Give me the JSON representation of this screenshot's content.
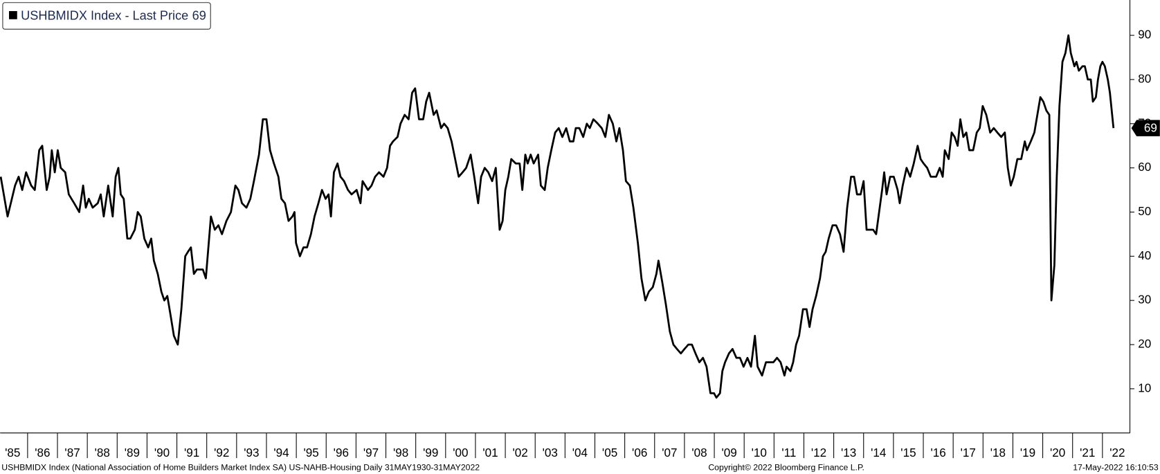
{
  "chart_data": {
    "type": "line",
    "series": [
      {
        "name": "USHBMIDX Index - Last Price",
        "color": "#000000",
        "x": [
          1985.1,
          1985.33,
          1985.58,
          1985.7,
          1985.82,
          1985.95,
          1986.12,
          1986.24,
          1986.39,
          1986.49,
          1986.64,
          1986.74,
          1986.81,
          1986.91,
          1987.01,
          1987.11,
          1987.26,
          1987.38,
          1987.56,
          1987.73,
          1987.86,
          1987.95,
          1988.05,
          1988.18,
          1988.35,
          1988.45,
          1988.55,
          1988.7,
          1988.85,
          1988.95,
          1989.04,
          1989.12,
          1989.22,
          1989.34,
          1989.44,
          1989.59,
          1989.69,
          1989.79,
          1989.91,
          1990.04,
          1990.14,
          1990.23,
          1990.36,
          1990.48,
          1990.58,
          1990.68,
          1990.78,
          1990.9,
          1991.03,
          1991.15,
          1991.28,
          1991.37,
          1991.47,
          1991.57,
          1991.67,
          1991.87,
          1991.97,
          1992.14,
          1992.27,
          1992.39,
          1992.51,
          1992.66,
          1992.81,
          1992.96,
          1993.06,
          1993.18,
          1993.33,
          1993.46,
          1993.58,
          1993.75,
          1993.88,
          1994.0,
          1994.12,
          1994.25,
          1994.4,
          1994.5,
          1994.62,
          1994.74,
          1994.87,
          1994.94,
          1994.99,
          1995.12,
          1995.24,
          1995.36,
          1995.49,
          1995.61,
          1995.74,
          1995.86,
          1995.98,
          1996.08,
          1996.16,
          1996.26,
          1996.38,
          1996.48,
          1996.6,
          1996.73,
          1996.85,
          1997.02,
          1997.15,
          1997.22,
          1997.4,
          1997.52,
          1997.64,
          1997.77,
          1997.92,
          1998.04,
          1998.14,
          1998.24,
          1998.39,
          1998.49,
          1998.63,
          1998.76,
          1998.88,
          1998.98,
          1999.11,
          1999.25,
          1999.35,
          1999.45,
          1999.6,
          1999.7,
          1999.85,
          1999.95,
          2000.07,
          2000.2,
          2000.29,
          2000.44,
          2000.57,
          2000.69,
          2000.84,
          2000.96,
          2001.09,
          2001.19,
          2001.31,
          2001.43,
          2001.56,
          2001.68,
          2001.81,
          2001.91,
          2002.0,
          2002.1,
          2002.2,
          2002.35,
          2002.48,
          2002.57,
          2002.67,
          2002.75,
          2002.85,
          2002.95,
          2003.1,
          2003.19,
          2003.32,
          2003.42,
          2003.54,
          2003.67,
          2003.79,
          2003.91,
          2004.04,
          2004.16,
          2004.28,
          2004.36,
          2004.48,
          2004.61,
          2004.73,
          2004.83,
          2004.95,
          2005.1,
          2005.23,
          2005.35,
          2005.47,
          2005.6,
          2005.72,
          2005.82,
          2005.94,
          2006.04,
          2006.17,
          2006.29,
          2006.44,
          2006.56,
          2006.69,
          2006.81,
          2006.94,
          2007.06,
          2007.13,
          2007.26,
          2007.38,
          2007.51,
          2007.63,
          2007.75,
          2007.88,
          2008.0,
          2008.13,
          2008.25,
          2008.37,
          2008.5,
          2008.62,
          2008.74,
          2008.87,
          2008.99,
          2009.07,
          2009.19,
          2009.27,
          2009.36,
          2009.49,
          2009.61,
          2009.74,
          2009.86,
          2009.98,
          2010.11,
          2010.23,
          2010.36,
          2010.45,
          2010.6,
          2010.73,
          2010.85,
          2010.98,
          2011.1,
          2011.22,
          2011.35,
          2011.42,
          2011.55,
          2011.64,
          2011.74,
          2011.84,
          2011.97,
          2012.09,
          2012.19,
          2012.29,
          2012.41,
          2012.54,
          2012.64,
          2012.73,
          2012.83,
          2012.96,
          2013.08,
          2013.21,
          2013.33,
          2013.45,
          2013.58,
          2013.68,
          2013.78,
          2013.9,
          2014.0,
          2014.1,
          2014.2,
          2014.32,
          2014.42,
          2014.52,
          2014.62,
          2014.69,
          2014.77,
          2014.89,
          2015.01,
          2015.14,
          2015.21,
          2015.31,
          2015.44,
          2015.56,
          2015.68,
          2015.81,
          2015.91,
          2016.01,
          2016.13,
          2016.25,
          2016.43,
          2016.55,
          2016.65,
          2016.72,
          2016.85,
          2016.95,
          2017.05,
          2017.15,
          2017.24,
          2017.34,
          2017.44,
          2017.54,
          2017.67,
          2017.79,
          2017.89,
          2017.99,
          2018.11,
          2018.24,
          2018.36,
          2018.48,
          2018.61,
          2018.73,
          2018.83,
          2018.93,
          2019.03,
          2019.15,
          2019.28,
          2019.4,
          2019.47,
          2019.6,
          2019.72,
          2019.82,
          2019.92,
          2020.02,
          2020.12,
          2020.22,
          2020.29,
          2020.39,
          2020.47,
          2020.56,
          2020.66,
          2020.76,
          2020.86,
          2020.94,
          2021.06,
          2021.13,
          2021.21,
          2021.33,
          2021.41,
          2021.51,
          2021.61,
          2021.68,
          2021.78,
          2021.85,
          2021.93,
          2022.0,
          2022.08,
          2022.18,
          2022.25,
          2022.37
        ],
        "values": [
          58,
          49,
          56,
          58,
          55,
          59,
          56,
          55,
          64,
          65,
          55,
          58,
          64,
          59,
          64,
          60,
          59,
          54,
          52,
          50,
          56,
          51,
          53,
          51,
          52,
          54,
          49,
          56,
          49,
          58,
          60,
          54,
          53,
          44,
          44,
          46,
          50,
          49,
          44,
          42,
          44,
          39,
          36,
          32,
          30,
          31,
          27,
          22,
          20,
          28,
          40,
          41,
          42,
          36,
          37,
          37,
          35,
          49,
          46,
          47,
          45,
          48,
          50,
          56,
          55,
          52,
          51,
          53,
          57,
          63,
          71,
          71,
          64,
          61,
          58,
          53,
          52,
          48,
          49,
          50,
          43,
          40,
          42,
          42,
          45,
          49,
          52,
          55,
          53,
          54,
          49,
          59,
          61,
          58,
          57,
          55,
          54,
          55,
          52,
          57,
          55,
          56,
          58,
          59,
          58,
          60,
          65,
          66,
          67,
          70,
          72,
          71,
          77,
          78,
          71,
          71,
          75,
          77,
          72,
          73,
          69,
          70,
          69,
          66,
          63,
          58,
          59,
          60,
          63,
          58,
          52,
          58,
          60,
          59,
          57,
          60,
          46,
          48,
          55,
          58,
          62,
          61,
          61,
          55,
          63,
          61,
          63,
          61,
          63,
          56,
          55,
          60,
          64,
          68,
          69,
          67,
          69,
          66,
          66,
          69,
          69,
          67,
          70,
          69,
          71,
          70,
          69,
          67,
          72,
          70,
          66,
          69,
          64,
          57,
          56,
          51,
          43,
          35,
          30,
          32,
          33,
          36,
          39,
          34,
          29,
          23,
          20,
          19,
          18,
          19,
          20,
          20,
          18,
          16,
          17,
          15,
          9,
          9,
          8,
          9,
          14,
          16,
          18,
          19,
          17,
          17,
          15,
          17,
          15,
          22,
          15,
          13,
          16,
          16,
          16,
          17,
          16,
          13,
          15,
          14,
          16,
          20,
          22,
          28,
          28,
          24,
          28,
          31,
          35,
          40,
          41,
          44,
          47,
          47,
          45,
          41,
          51,
          58,
          58,
          54,
          54,
          57,
          46,
          46,
          46,
          45,
          50,
          55,
          59,
          54,
          58,
          58,
          55,
          52,
          56,
          60,
          58,
          61,
          65,
          62,
          61,
          60,
          58,
          58,
          60,
          58,
          64,
          62,
          68,
          67,
          65,
          71,
          67,
          68,
          64,
          64,
          68,
          69,
          74,
          72,
          68,
          69,
          68,
          67,
          68,
          60,
          56,
          58,
          62,
          62,
          66,
          64,
          66,
          68,
          72,
          76,
          75,
          73,
          72,
          30,
          38,
          58,
          74,
          84,
          86,
          90,
          86,
          83,
          84,
          82,
          83,
          83,
          80,
          80,
          75,
          76,
          80,
          83,
          84,
          83,
          80,
          77,
          69
        ]
      }
    ],
    "xlim": [
      1985.08,
      2022.92
    ],
    "ylim": [
      0,
      98
    ],
    "yticks": [
      10,
      20,
      30,
      40,
      50,
      60,
      70,
      80,
      90
    ],
    "xticks": [
      {
        "value": 1985,
        "label": "'85"
      },
      {
        "value": 1986,
        "label": "'86"
      },
      {
        "value": 1987,
        "label": "'87"
      },
      {
        "value": 1988,
        "label": "'88"
      },
      {
        "value": 1989,
        "label": "'89"
      },
      {
        "value": 1990,
        "label": "'90"
      },
      {
        "value": 1991,
        "label": "'91"
      },
      {
        "value": 1992,
        "label": "'92"
      },
      {
        "value": 1993,
        "label": "'93"
      },
      {
        "value": 1994,
        "label": "'94"
      },
      {
        "value": 1995,
        "label": "'95"
      },
      {
        "value": 1996,
        "label": "'96"
      },
      {
        "value": 1997,
        "label": "'97"
      },
      {
        "value": 1998,
        "label": "'98"
      },
      {
        "value": 1999,
        "label": "'99"
      },
      {
        "value": 2000,
        "label": "'00"
      },
      {
        "value": 2001,
        "label": "'01"
      },
      {
        "value": 2002,
        "label": "'02"
      },
      {
        "value": 2003,
        "label": "'03"
      },
      {
        "value": 2004,
        "label": "'04"
      },
      {
        "value": 2005,
        "label": "'05"
      },
      {
        "value": 2006,
        "label": "'06"
      },
      {
        "value": 2007,
        "label": "'07"
      },
      {
        "value": 2008,
        "label": "'08"
      },
      {
        "value": 2009,
        "label": "'09"
      },
      {
        "value": 2010,
        "label": "'10"
      },
      {
        "value": 2011,
        "label": "'11"
      },
      {
        "value": 2012,
        "label": "'12"
      },
      {
        "value": 2013,
        "label": "'13"
      },
      {
        "value": 2014,
        "label": "'14"
      },
      {
        "value": 2015,
        "label": "'15"
      },
      {
        "value": 2016,
        "label": "'16"
      },
      {
        "value": 2017,
        "label": "'17"
      },
      {
        "value": 2018,
        "label": "'18"
      },
      {
        "value": 2019,
        "label": "'19"
      },
      {
        "value": 2020,
        "label": "'20"
      },
      {
        "value": 2021,
        "label": "'21"
      },
      {
        "value": 2022,
        "label": "'22"
      }
    ],
    "grid": false,
    "legend": "top-left",
    "footer": {
      "left": "USHBMIDX Index (National Association of Home Builders Market Index SA) US-NAHB-Housing  Daily 31MAY1930-31MAY2022",
      "center": "Copyright© 2022 Bloomberg Finance L.P.",
      "right": "17-May-2022 16:10:53"
    }
  }
}
